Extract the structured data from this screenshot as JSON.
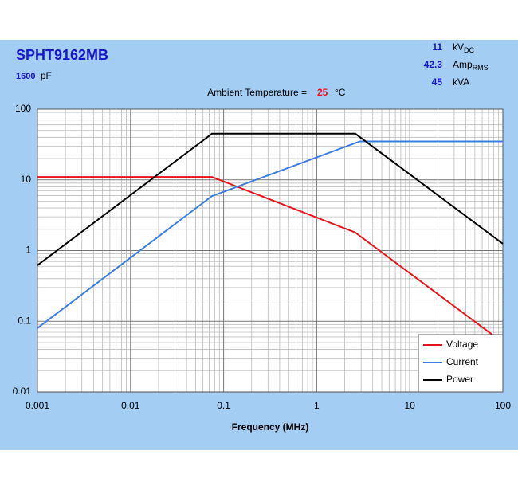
{
  "chart_data": {
    "type": "line",
    "title": "SPHT9162MB",
    "capacitance": 1600,
    "capacitance_unit": "pF",
    "temperature_label": "Ambient Temperature =",
    "temperature": 25,
    "temperature_unit": "°C",
    "ratings": [
      {
        "value": 11,
        "unit": "kV",
        "unit_sub": "DC"
      },
      {
        "value": 42.3,
        "unit": "Amp",
        "unit_sub": "RMS"
      },
      {
        "value": 45,
        "unit": "kVA"
      }
    ],
    "x_label": "Frequency (MHz)",
    "xscale": "log",
    "yscale": "log",
    "xlim": [
      0.001,
      100
    ],
    "ylim": [
      0.01,
      100
    ],
    "xticks": [
      0.001,
      0.01,
      0.1,
      1,
      10,
      100
    ],
    "yticks": [
      0.01,
      0.1,
      1,
      10,
      100
    ],
    "grid": true,
    "legend": "lower right",
    "series": [
      {
        "name": "Voltage",
        "color": "#e8141c",
        "x": [
          0.001,
          0.075,
          2.6,
          100
        ],
        "values": [
          11,
          11,
          1.8,
          0.05
        ]
      },
      {
        "name": "Current",
        "color": "#3b7de0",
        "x": [
          0.001,
          0.075,
          2.9,
          100
        ],
        "values": [
          0.08,
          5.9,
          35,
          35
        ]
      },
      {
        "name": "Power",
        "color": "#000000",
        "x": [
          0.001,
          0.075,
          2.6,
          100
        ],
        "values": [
          0.62,
          45,
          45,
          1.25
        ]
      }
    ]
  }
}
